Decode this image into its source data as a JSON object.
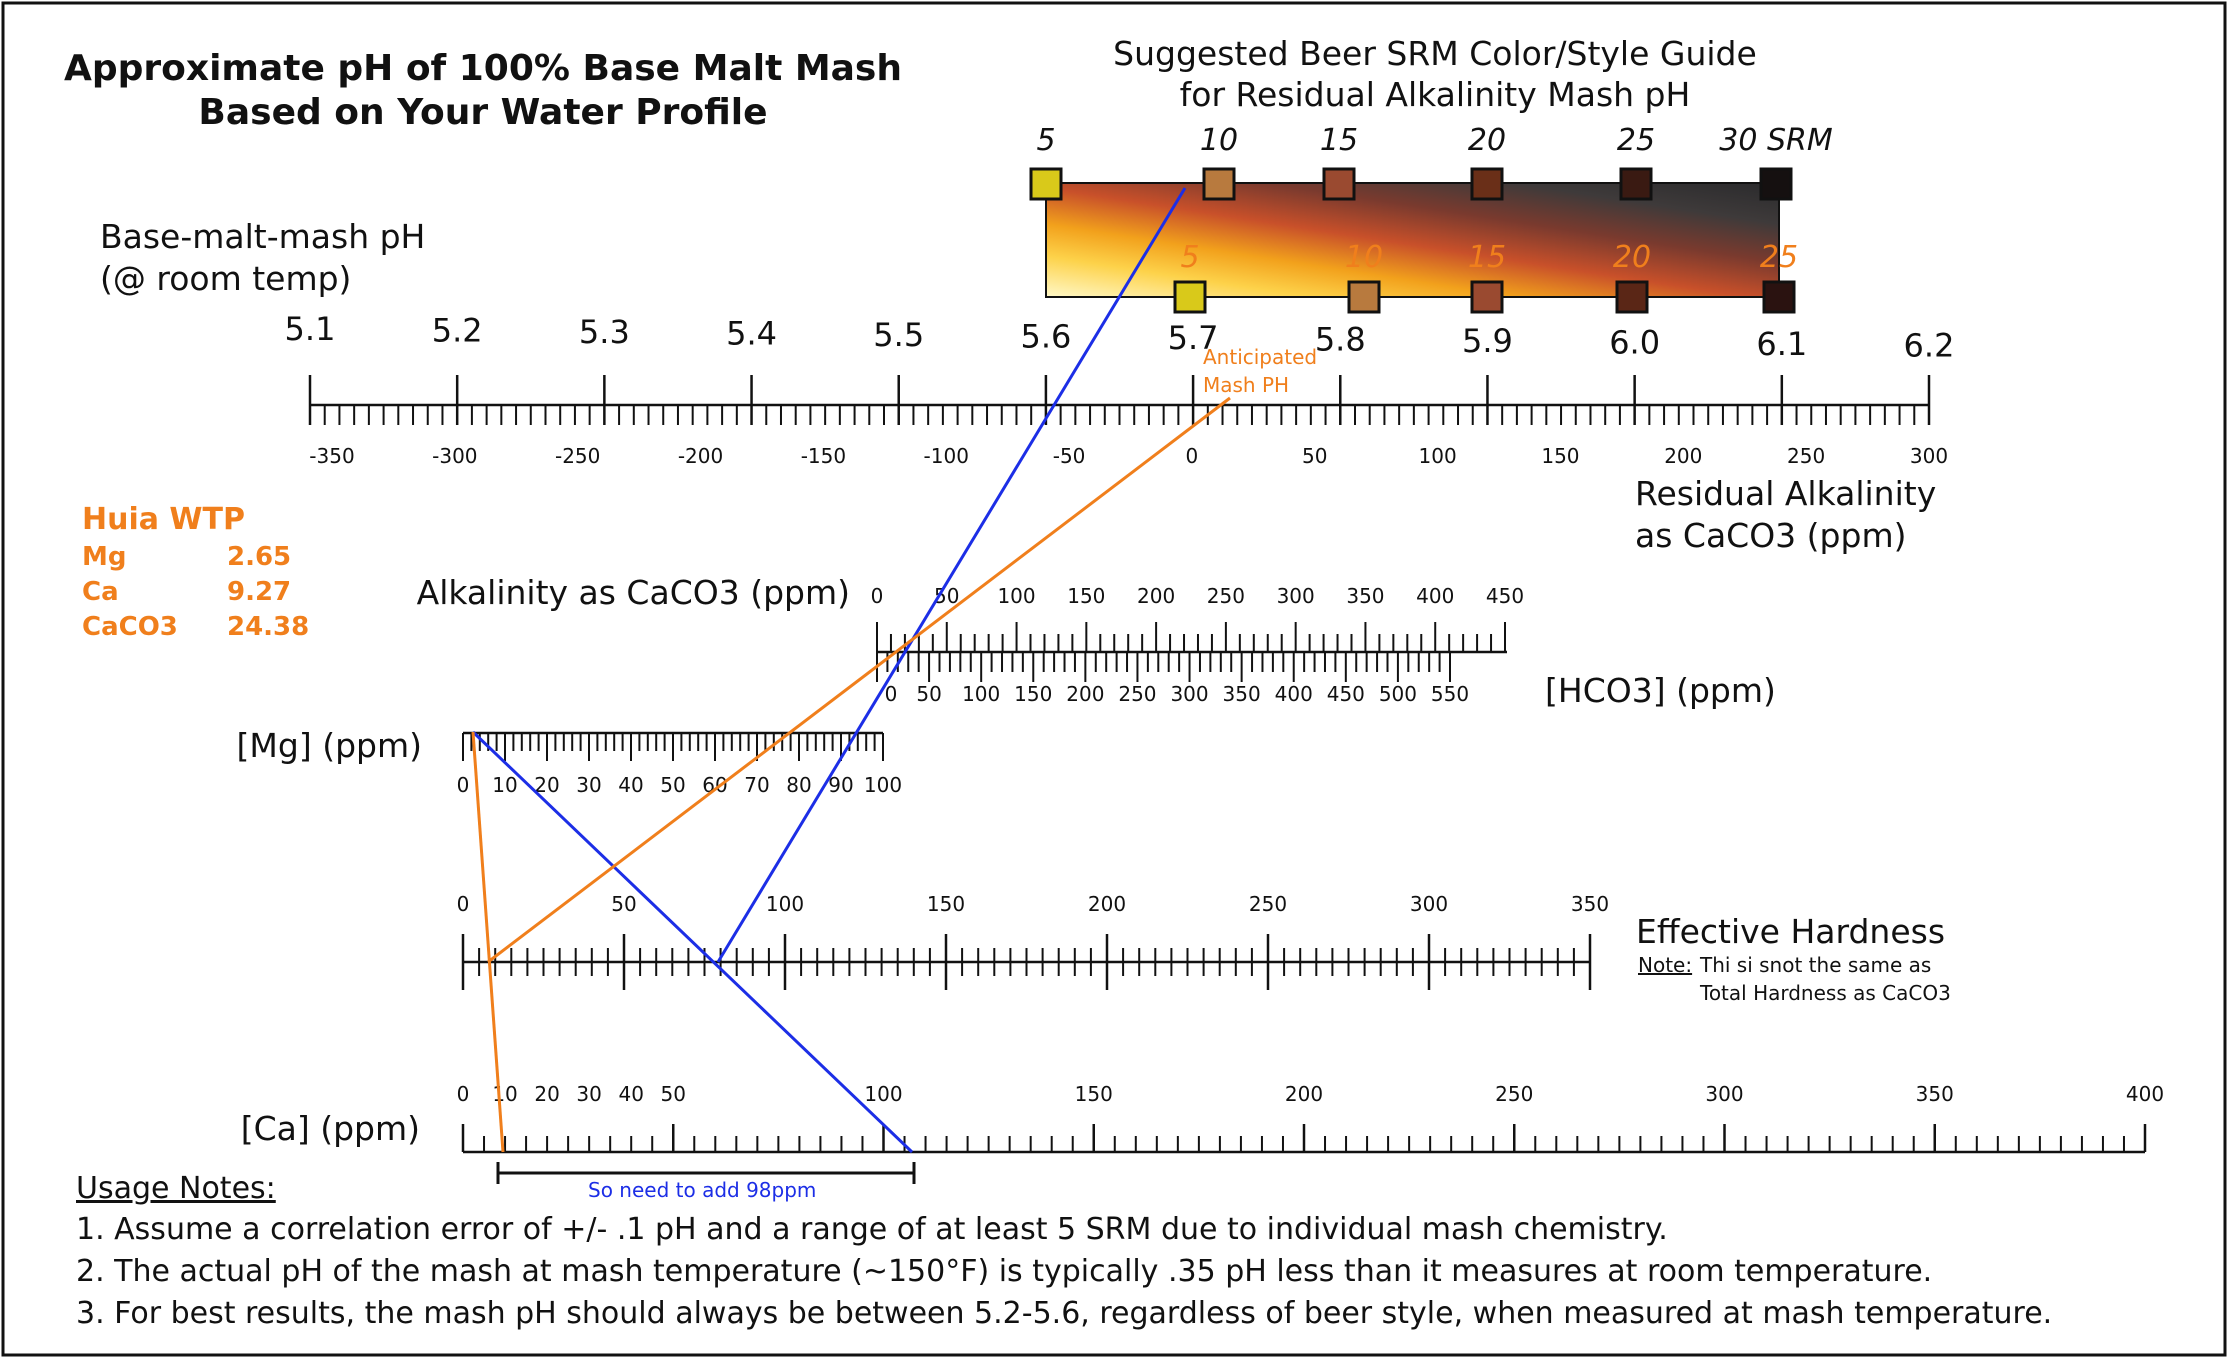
{
  "title": {
    "line1": "Approximate pH of 100% Base Malt Mash",
    "line2": "Based on Your Water Profile"
  },
  "srm_guide": {
    "title_line1": "Suggested Beer SRM Color/Style Guide",
    "title_line2": "for Residual Alkalinity Mash pH",
    "top_labels": [
      "5",
      "10",
      "15",
      "20",
      "25",
      "30 SRM"
    ],
    "bottom_labels": [
      "5",
      "10",
      "15",
      "20",
      "25"
    ],
    "swatch_colors_top": [
      "#d9c91a",
      "#b87a3e",
      "#9a4a30",
      "#6a2f18",
      "#3a1a12",
      "#151010"
    ],
    "swatch_colors_bottom": [
      "#d9c91a",
      "#b87a3e",
      "#9a4a30",
      "#5a2616",
      "#2a1210"
    ]
  },
  "ph_scale": {
    "label_line1": "Base-malt-mash pH",
    "label_line2": "(@ room temp)",
    "ticks": [
      "5.1",
      "5.2",
      "5.3",
      "5.4",
      "5.5",
      "5.6",
      "5.7",
      "5.8",
      "5.9",
      "6.0",
      "6.1",
      "6.2"
    ]
  },
  "ra_scale": {
    "label_line1": "Residual Alkalinity",
    "label_line2": "as CaCO3 (ppm)",
    "ticks": [
      "-350",
      "-300",
      "-250",
      "-200",
      "-150",
      "-100",
      "-50",
      "0",
      "50",
      "100",
      "150",
      "200",
      "250",
      "300"
    ]
  },
  "alkalinity_scale": {
    "label": "Alkalinity as CaCO3 (ppm)",
    "ticks": [
      "0",
      "50",
      "100",
      "150",
      "200",
      "250",
      "300",
      "350",
      "400",
      "450"
    ]
  },
  "hco3_scale": {
    "label": "[HCO3] (ppm)",
    "ticks": [
      "0",
      "50",
      "100",
      "150",
      "200",
      "250",
      "300",
      "350",
      "400",
      "450",
      "500",
      "550"
    ]
  },
  "mg_scale": {
    "label": "[Mg] (ppm)",
    "ticks": [
      "0",
      "10",
      "20",
      "30",
      "40",
      "50",
      "60",
      "70",
      "80",
      "90",
      "100"
    ]
  },
  "hardness_scale": {
    "label": "Effective Hardness",
    "note_label": "Note:",
    "note_text_line1": "Thi si snot the same as",
    "note_text_line2": "Total Hardness as CaCO3",
    "ticks": [
      "0",
      "50",
      "100",
      "150",
      "200",
      "250",
      "300",
      "350"
    ]
  },
  "ca_scale": {
    "label": "[Ca] (ppm)",
    "ticks": [
      "0",
      "10",
      "20",
      "30",
      "40",
      "50",
      "100",
      "150",
      "200",
      "250",
      "300",
      "350",
      "400"
    ]
  },
  "water_profile": {
    "name": "Huia WTP",
    "rows": [
      {
        "ion": "Mg",
        "value": "2.65"
      },
      {
        "ion": "Ca",
        "value": "9.27"
      },
      {
        "ion": "CaCO3",
        "value": "24.38"
      }
    ]
  },
  "annotations": {
    "anticipated_line1": "Anticipated",
    "anticipated_line2": "Mash PH",
    "add_note": "So need to add 98ppm"
  },
  "usage_notes": {
    "heading": "Usage Notes:",
    "items": [
      "1. Assume a correlation error of +/- .1 pH and a range of at least 5 SRM due to individual mash chemistry.",
      "2. The actual pH of the mash at mash temperature (~150°F) is typically .35 pH less than it measures at room temperature.",
      "3. For best results, the mash pH should always be between 5.2-5.6, regardless of beer style, when measured at mash temperature."
    ]
  },
  "colors": {
    "orange": "#f07f1c",
    "blue": "#1c2ee6",
    "text": "#111111"
  }
}
